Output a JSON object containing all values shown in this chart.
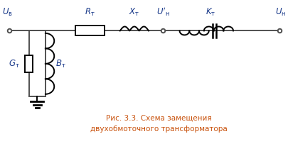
{
  "title_line1": "Рис. 3.3. Схема замещения",
  "title_line2": "двухобмоточного трансформатора",
  "title_color": "#c8500a",
  "line_color": "#505050",
  "component_color": "#000000",
  "label_color": "#1a3a8a",
  "background": "#ffffff",
  "fig_width": 4.06,
  "fig_height": 2.13,
  "dpi": 100
}
